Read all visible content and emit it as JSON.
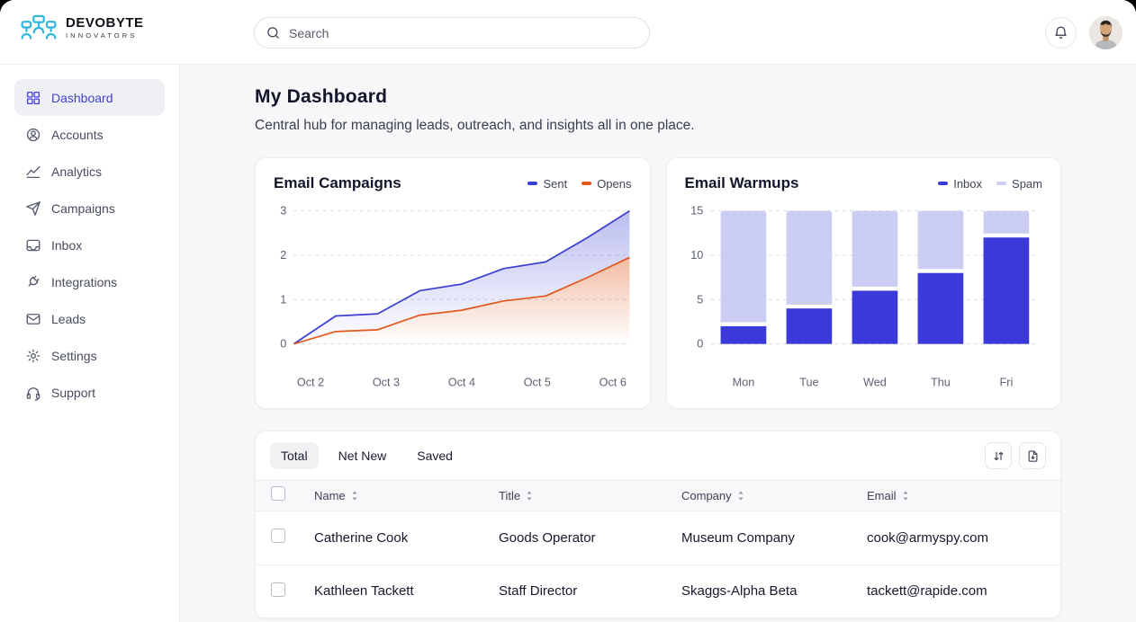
{
  "brand": {
    "name": "DEVOBYTE",
    "tagline": "INNOVATORS"
  },
  "topbar": {
    "search_placeholder": "Search",
    "icons": [
      "search-icon",
      "bell-icon",
      "user-avatar"
    ]
  },
  "sidebar": {
    "items": [
      {
        "label": "Dashboard",
        "icon": "grid-icon",
        "active": true
      },
      {
        "label": "Accounts",
        "icon": "user-circle-icon",
        "active": false
      },
      {
        "label": "Analytics",
        "icon": "line-chart-icon",
        "active": false
      },
      {
        "label": "Campaigns",
        "icon": "paper-plane-icon",
        "active": false
      },
      {
        "label": "Inbox",
        "icon": "inbox-tray-icon",
        "active": false
      },
      {
        "label": "Integrations",
        "icon": "plug-icon",
        "active": false
      },
      {
        "label": "Leads",
        "icon": "envelope-icon",
        "active": false
      },
      {
        "label": "Settings",
        "icon": "gear-icon",
        "active": false
      },
      {
        "label": "Support",
        "icon": "headset-icon",
        "active": false
      }
    ]
  },
  "page": {
    "title": "My Dashboard",
    "subtitle": "Central hub for managing leads, outreach, and insights all in one place."
  },
  "chart_data": [
    {
      "type": "area",
      "title": "Email Campaigns",
      "x_labels": [
        "Oct 2",
        "Oct 3",
        "Oct 4",
        "Oct 5",
        "Oct 6"
      ],
      "ylim": [
        0,
        3
      ],
      "yticks": [
        0,
        1,
        2,
        3
      ],
      "grid": true,
      "legend_position": "top-right",
      "series": [
        {
          "name": "Sent",
          "color": "#3a3fd1",
          "values": [
            0,
            0.63,
            0.68,
            1.2,
            1.35,
            1.7,
            1.85,
            2.4,
            3.0
          ]
        },
        {
          "name": "Opens",
          "color": "#e2571c",
          "values": [
            0,
            0.28,
            0.32,
            0.65,
            0.76,
            0.97,
            1.08,
            1.5,
            1.95
          ]
        }
      ]
    },
    {
      "type": "bar",
      "stacked": true,
      "title": "Email Warmups",
      "categories": [
        "Mon",
        "Tue",
        "Wed",
        "Thu",
        "Fri"
      ],
      "ylim": [
        0,
        15
      ],
      "yticks": [
        0,
        5,
        10,
        15
      ],
      "grid": true,
      "legend_position": "top-right",
      "series": [
        {
          "name": "Inbox",
          "color": "#3b39d9",
          "values": [
            2,
            4,
            6,
            8,
            12
          ]
        },
        {
          "name": "Spam",
          "color": "#cbcdf2",
          "values": [
            13,
            11,
            9,
            7,
            3
          ]
        }
      ]
    }
  ],
  "table": {
    "tabs": [
      {
        "label": "Total",
        "active": true
      },
      {
        "label": "Net New",
        "active": false
      },
      {
        "label": "Saved",
        "active": false
      }
    ],
    "toolbar_icons": [
      "sort-arrows-icon",
      "export-file-icon"
    ],
    "columns": [
      "Name",
      "Title",
      "Company",
      "Email"
    ],
    "rows": [
      {
        "name": "Catherine Cook",
        "title": "Goods Operator",
        "company": "Museum Company",
        "email": "cook@armyspy.com"
      },
      {
        "name": "Kathleen Tackett",
        "title": "Staff Director",
        "company": "Skaggs-Alpha Beta",
        "email": "tackett@rapide.com"
      }
    ]
  },
  "colors": {
    "accent_indigo": "#4340d6",
    "line_sent": "#3a3fd1",
    "line_opens": "#e2571c",
    "bar_inbox": "#3b39d9",
    "bar_spam": "#cbcdf2",
    "logo_cyan": "#2fb5de",
    "main_bg": "#f7f7f9"
  }
}
